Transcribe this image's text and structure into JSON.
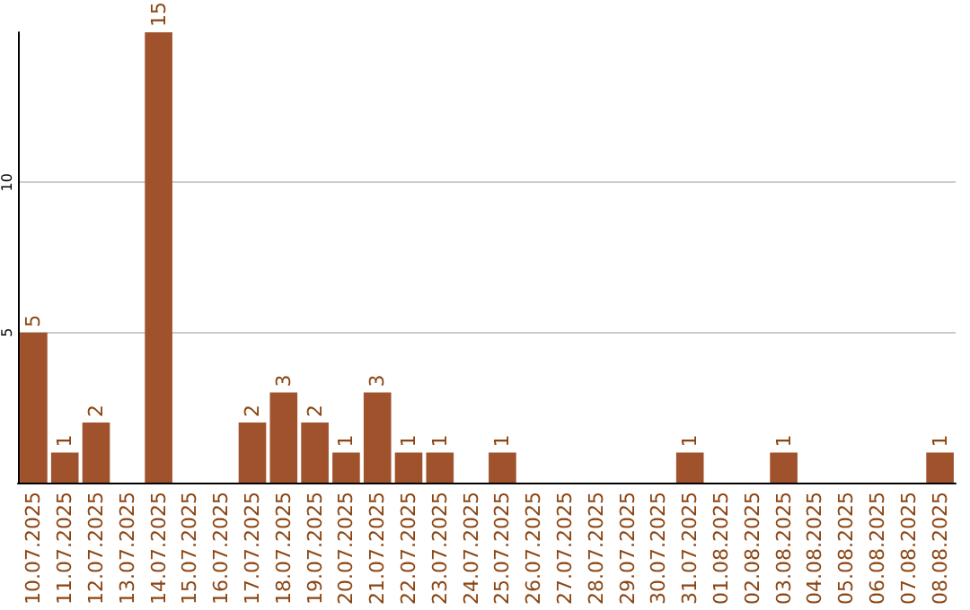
{
  "chart_data": {
    "type": "bar",
    "categories": [
      "10.07.2025",
      "11.07.2025",
      "12.07.2025",
      "13.07.2025",
      "14.07.2025",
      "15.07.2025",
      "16.07.2025",
      "17.07.2025",
      "18.07.2025",
      "19.07.2025",
      "20.07.2025",
      "21.07.2025",
      "22.07.2025",
      "23.07.2025",
      "24.07.2025",
      "25.07.2025",
      "26.07.2025",
      "27.07.2025",
      "28.07.2025",
      "29.07.2025",
      "30.07.2025",
      "31.07.2025",
      "01.08.2025",
      "02.08.2025",
      "03.08.2025",
      "04.08.2025",
      "05.08.2025",
      "06.08.2025",
      "07.08.2025",
      "08.08.2025"
    ],
    "values": [
      5,
      1,
      2,
      0,
      15,
      0,
      0,
      2,
      3,
      2,
      1,
      3,
      1,
      1,
      0,
      1,
      0,
      0,
      0,
      0,
      0,
      1,
      0,
      0,
      1,
      0,
      0,
      0,
      0,
      1
    ],
    "value_labels": [
      "5",
      "1",
      "2",
      null,
      "15",
      null,
      null,
      "2",
      "3",
      "2",
      "1",
      "3",
      "1",
      "1",
      null,
      "1",
      null,
      null,
      null,
      null,
      null,
      "1",
      null,
      null,
      "1",
      null,
      null,
      null,
      null,
      "1"
    ],
    "color": "#a0522d",
    "ylim": [
      0,
      15
    ],
    "yticks": [
      5,
      10
    ],
    "grid": "y"
  }
}
